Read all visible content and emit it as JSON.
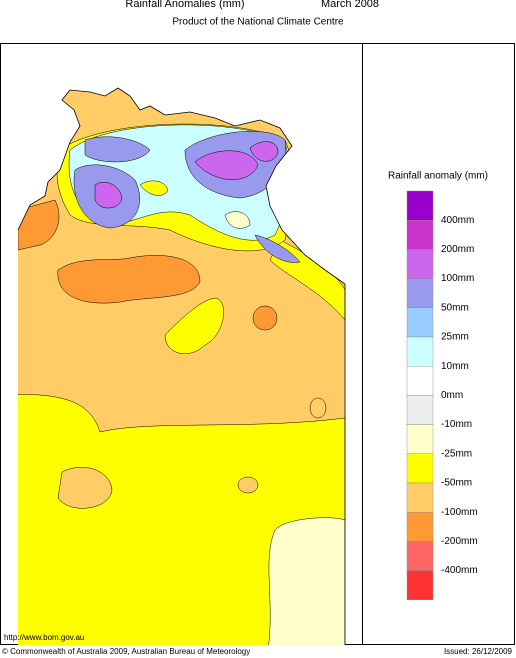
{
  "header": {
    "title": "Rainfall Anomalies (mm)",
    "date": "March 2008",
    "subtitle": "Product of the National Climate Centre"
  },
  "legend": {
    "title": "Rainfall anomaly (mm)",
    "colors": [
      "#9900cc",
      "#cc33cc",
      "#cc66ee",
      "#9999ee",
      "#99ccff",
      "#ccffff",
      "#ffffff",
      "#eeeeee",
      "#ffffcc",
      "#ffff00",
      "#ffcc66",
      "#ff9933",
      "#ff6666",
      "#ff3333"
    ],
    "labels": [
      "400mm",
      "200mm",
      "100mm",
      "50mm",
      "25mm",
      "10mm",
      "0mm",
      "-10mm",
      "-25mm",
      "-50mm",
      "-100mm",
      "-200mm",
      "-400mm"
    ]
  },
  "footer": {
    "url": "http://www.bom.gov.au",
    "copyright": "© Commonwealth of Australia 2009, Australian Bureau of Meteorology",
    "issued": "Issued: 26/12/2009"
  }
}
